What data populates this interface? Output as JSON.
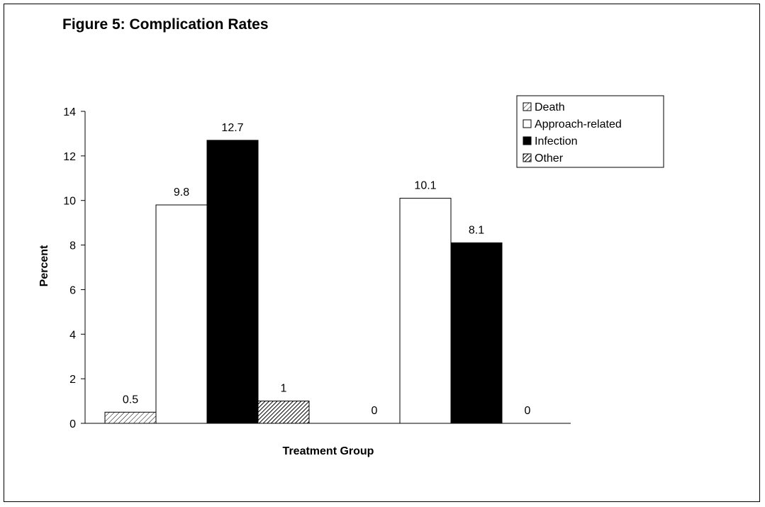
{
  "chart_data": {
    "type": "bar",
    "title": "Figure 5:  Complication Rates",
    "xlabel": "Treatment Group",
    "ylabel": "Percent",
    "ylim": [
      0,
      14
    ],
    "yticks": [
      "0",
      "2",
      "4",
      "6",
      "8",
      "10",
      "12",
      "14"
    ],
    "categories": [
      "",
      ""
    ],
    "series": [
      {
        "name": "Death",
        "values": [
          0.5,
          0
        ],
        "labels": [
          "0.5",
          "0"
        ],
        "fill": "hatch-light",
        "color": "#000000"
      },
      {
        "name": "Approach-related",
        "values": [
          9.8,
          10.1
        ],
        "labels": [
          "9.8",
          "10.1"
        ],
        "fill": "solid",
        "color": "#ffffff"
      },
      {
        "name": "Infection",
        "values": [
          12.7,
          8.1
        ],
        "labels": [
          "12.7",
          "8.1"
        ],
        "fill": "solid",
        "color": "#000000"
      },
      {
        "name": "Other",
        "values": [
          1,
          0
        ],
        "labels": [
          "1",
          "0"
        ],
        "fill": "hatch-dense",
        "color": "#000000"
      }
    ],
    "legend_position": "top-right",
    "grid": false
  }
}
